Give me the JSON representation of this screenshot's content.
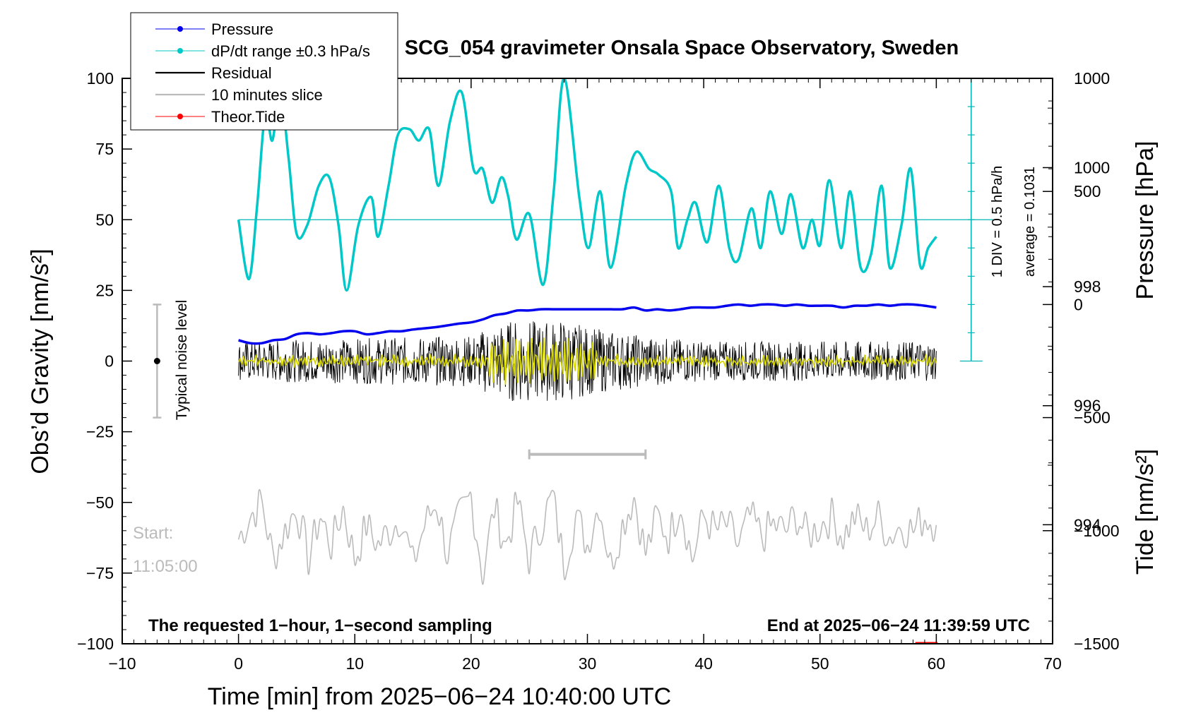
{
  "chart_data": {
    "type": "line",
    "title": "SCG_054 gravimeter Onsala Space Observatory, Sweden",
    "xlabel": "Time [min] from 2025−06−24 10:40:00 UTC",
    "ylabel_left": "Obs’d Gravity [nm/s²]",
    "ylabel_right_top": "Pressure [hPa]",
    "ylabel_right_bottom": "Tide [nm/s²]",
    "xlim": [
      -10,
      70
    ],
    "ylim_left": [
      -100,
      100
    ],
    "ylim_pressure": [
      992,
      1001.5
    ],
    "ylim_tide": [
      -1500,
      1000
    ],
    "x_ticks": [
      -10,
      0,
      10,
      20,
      30,
      40,
      50,
      60,
      70
    ],
    "x_tick_labels": [
      "−10",
      "0",
      "10",
      "20",
      "30",
      "40",
      "50",
      "60",
      "70"
    ],
    "y_left_ticks": [
      100,
      75,
      50,
      25,
      0,
      -25,
      -50,
      -75,
      -100
    ],
    "y_left_tick_labels": [
      "100",
      "75",
      "50",
      "25",
      "0",
      "−25",
      "−50",
      "−75",
      "−100"
    ],
    "y_pressure_ticks": [
      1000,
      998,
      996,
      994
    ],
    "y_pressure_tick_labels": [
      "1000",
      "998",
      "996",
      "994"
    ],
    "y_tide_ticks": [
      1000,
      500,
      0,
      -500,
      -1000,
      -1500
    ],
    "y_tide_tick_labels": [
      "1000",
      "500",
      "0",
      "−500",
      "−1000",
      "−1500"
    ],
    "legend": {
      "placement": "top-left",
      "entries": [
        {
          "label": "Pressure",
          "color": "#0000ee",
          "marker": true
        },
        {
          "label": "dP/dt range ±0.3 hPa/s",
          "color": "#00c8c8",
          "marker": true
        },
        {
          "label": "Residual",
          "color": "#000000",
          "marker": false
        },
        {
          "label": "10 minutes slice",
          "color": "#bbbbbb",
          "marker": false
        },
        {
          "label": "Theor.Tide",
          "color": "#ff0000",
          "marker": true
        }
      ]
    },
    "series": [
      {
        "name": "Pressure",
        "color": "#0000ee",
        "axis": "pressure",
        "x": [
          0,
          1,
          2,
          3,
          4,
          5,
          6,
          7,
          8,
          9,
          10,
          11,
          12,
          13,
          14,
          15,
          16,
          17,
          18,
          19,
          20,
          21,
          22,
          23,
          24,
          25,
          26,
          27,
          28,
          29,
          30,
          31,
          32,
          33,
          34,
          35,
          36,
          37,
          38,
          39,
          40,
          41,
          42,
          43,
          44,
          45,
          46,
          47,
          48,
          49,
          50,
          51,
          52,
          53,
          54,
          55,
          56,
          57,
          58,
          59,
          60
        ],
        "values": [
          997.1,
          997.05,
          997.05,
          997.1,
          997.12,
          997.2,
          997.22,
          997.2,
          997.22,
          997.25,
          997.25,
          997.2,
          997.22,
          997.25,
          997.25,
          997.28,
          997.3,
          997.32,
          997.35,
          997.38,
          997.4,
          997.45,
          997.52,
          997.55,
          997.6,
          997.6,
          997.62,
          997.62,
          997.62,
          997.62,
          997.62,
          997.62,
          997.62,
          997.62,
          997.65,
          997.6,
          997.62,
          997.6,
          997.62,
          997.65,
          997.65,
          997.65,
          997.68,
          997.7,
          997.68,
          997.7,
          997.7,
          997.68,
          997.7,
          997.68,
          997.68,
          997.68,
          997.65,
          997.68,
          997.68,
          997.7,
          997.68,
          997.7,
          997.7,
          997.68,
          997.65
        ]
      },
      {
        "name": "dP/dt range ±0.3 hPa/s",
        "color": "#00c8c8",
        "axis": "left",
        "x": [
          0,
          0.9,
          1.6,
          2.3,
          2.9,
          3.6,
          4.3,
          5.0,
          5.9,
          6.9,
          7.8,
          8.6,
          9.3,
          10.3,
          11.4,
          12.0,
          12.9,
          13.7,
          14.7,
          15.5,
          16.4,
          17.2,
          18.2,
          19.2,
          20.2,
          21.0,
          21.8,
          22.6,
          23.2,
          23.9,
          25.0,
          26.2,
          27.1,
          28.0,
          29.3,
          30.1,
          31.1,
          32.0,
          33.3,
          34.2,
          35.3,
          36.1,
          37.2,
          37.8,
          38.6,
          39.3,
          40.3,
          41.3,
          42.2,
          43.0,
          44.1,
          44.9,
          45.7,
          46.7,
          47.5,
          48.5,
          49.3,
          50.0,
          50.8,
          51.8,
          52.6,
          53.5,
          54.4,
          55.3,
          56.0,
          57.0,
          57.8,
          58.6,
          59.3,
          60.0
        ],
        "values": [
          50,
          29,
          55,
          88,
          78,
          95,
          72,
          45,
          48,
          62,
          65,
          48,
          25,
          48,
          58,
          44,
          62,
          80,
          82,
          78,
          82,
          62,
          85,
          95,
          68,
          68,
          56,
          65,
          58,
          43,
          52,
          27,
          60,
          100,
          58,
          40,
          60,
          33,
          62,
          74,
          68,
          66,
          60,
          40,
          50,
          56,
          42,
          62,
          40,
          36,
          54,
          40,
          60,
          45,
          59,
          40,
          50,
          41,
          64,
          40,
          60,
          33,
          38,
          62,
          33,
          48,
          68,
          34,
          40,
          44
        ]
      },
      {
        "name": "Residual",
        "color": "#000000",
        "axis": "left",
        "x_range": [
          0,
          60
        ],
        "envelope": {
          "x": [
            0,
            10,
            20,
            22,
            24,
            26,
            28,
            30,
            35,
            40,
            50,
            60
          ],
          "amplitude": [
            7,
            8,
            9,
            13,
            15,
            14,
            15,
            12,
            9,
            7,
            7,
            7
          ]
        },
        "values": [
          0
        ]
      },
      {
        "name": "10 minutes slice",
        "color": "#bbbbbb",
        "axis": "left",
        "x": [
          0,
          1,
          2,
          3,
          4,
          5,
          6,
          7,
          8,
          9,
          10,
          11,
          12,
          13,
          14,
          15,
          16,
          17,
          18,
          19,
          20,
          21,
          22,
          23,
          24,
          25,
          26,
          27,
          28,
          29,
          30,
          31,
          32,
          33,
          34,
          35,
          36,
          37,
          38,
          39,
          40,
          41,
          42,
          43,
          44,
          45,
          46,
          47,
          48,
          49,
          50,
          51,
          52,
          53,
          54,
          55,
          56,
          57,
          58,
          59,
          60
        ],
        "values": [
          -63,
          -55,
          -50,
          -70,
          -60,
          -52,
          -70,
          -55,
          -65,
          -52,
          -70,
          -58,
          -65,
          -60,
          -55,
          -72,
          -58,
          -50,
          -68,
          -55,
          -48,
          -75,
          -52,
          -65,
          -50,
          -70,
          -58,
          -48,
          -72,
          -55,
          -65,
          -50,
          -72,
          -58,
          -48,
          -68,
          -55,
          -62,
          -50,
          -70,
          -55,
          -60,
          -58,
          -65,
          -55,
          -62,
          -58,
          -60,
          -55,
          -62,
          -58,
          -55,
          -62,
          -55,
          -60,
          -55,
          -62,
          -58,
          -60,
          -55,
          -58
        ]
      }
    ],
    "slice_bar": {
      "x": [
        25,
        35
      ],
      "y": -33,
      "color": "#bbbbbb"
    },
    "noise_bar": {
      "x": -7,
      "y_range": [
        -20,
        20
      ],
      "y_center": 0,
      "label": "Typical noise level"
    },
    "pressure_scale": {
      "x": 63,
      "label_1": "1 DIV = 0.5 hPa/h",
      "label_2": "average = 0.1031"
    },
    "annotations": {
      "start_label": "Start:",
      "start_time": "11:05:00",
      "bottom_left": "The requested 1−hour, 1−second sampling",
      "bottom_right": "End at 2025−06−24 11:39:59 UTC"
    },
    "grid": false
  }
}
